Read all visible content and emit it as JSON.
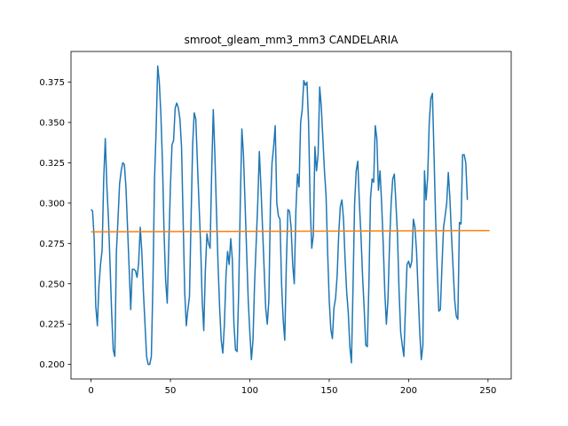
{
  "chart_data": {
    "type": "line",
    "title": "smroot_gleam_mm3_mm3 CANDELARIA",
    "xlabel": "",
    "ylabel": "",
    "xlim": [
      -12.6,
      264.6
    ],
    "ylim": [
      0.191,
      0.394
    ],
    "x_ticks": [
      0,
      50,
      100,
      150,
      200,
      250
    ],
    "x_tick_labels": [
      "0",
      "50",
      "100",
      "150",
      "200",
      "250"
    ],
    "y_ticks": [
      0.2,
      0.225,
      0.25,
      0.275,
      0.3,
      0.325,
      0.35,
      0.375
    ],
    "y_tick_labels": [
      "0.200",
      "0.225",
      "0.250",
      "0.275",
      "0.300",
      "0.325",
      "0.350",
      "0.375"
    ],
    "grid": false,
    "series": [
      {
        "color": "#1f77b4",
        "points": [
          [
            0,
            0.296
          ],
          [
            1,
            0.295
          ],
          [
            2,
            0.278
          ],
          [
            3,
            0.236
          ],
          [
            4,
            0.224
          ],
          [
            5,
            0.249
          ],
          [
            6,
            0.262
          ],
          [
            7,
            0.271
          ],
          [
            8,
            0.315
          ],
          [
            9,
            0.34
          ],
          [
            10,
            0.31
          ],
          [
            11,
            0.29
          ],
          [
            12,
            0.262
          ],
          [
            13,
            0.232
          ],
          [
            14,
            0.209
          ],
          [
            15,
            0.205
          ],
          [
            16,
            0.27
          ],
          [
            17,
            0.29
          ],
          [
            18,
            0.312
          ],
          [
            19,
            0.32
          ],
          [
            20,
            0.325
          ],
          [
            21,
            0.324
          ],
          [
            22,
            0.31
          ],
          [
            23,
            0.285
          ],
          [
            24,
            0.26
          ],
          [
            25,
            0.234
          ],
          [
            26,
            0.259
          ],
          [
            27,
            0.259
          ],
          [
            28,
            0.258
          ],
          [
            29,
            0.254
          ],
          [
            30,
            0.263
          ],
          [
            31,
            0.285
          ],
          [
            32,
            0.27
          ],
          [
            33,
            0.245
          ],
          [
            34,
            0.225
          ],
          [
            35,
            0.205
          ],
          [
            36,
            0.2
          ],
          [
            37,
            0.2
          ],
          [
            38,
            0.205
          ],
          [
            39,
            0.251
          ],
          [
            40,
            0.315
          ],
          [
            41,
            0.345
          ],
          [
            42,
            0.385
          ],
          [
            43,
            0.375
          ],
          [
            44,
            0.355
          ],
          [
            45,
            0.325
          ],
          [
            46,
            0.282
          ],
          [
            47,
            0.252
          ],
          [
            48,
            0.238
          ],
          [
            49,
            0.275
          ],
          [
            50,
            0.31
          ],
          [
            51,
            0.336
          ],
          [
            52,
            0.339
          ],
          [
            53,
            0.359
          ],
          [
            54,
            0.362
          ],
          [
            55,
            0.359
          ],
          [
            56,
            0.352
          ],
          [
            57,
            0.335
          ],
          [
            58,
            0.29
          ],
          [
            59,
            0.245
          ],
          [
            60,
            0.224
          ],
          [
            61,
            0.234
          ],
          [
            62,
            0.242
          ],
          [
            63,
            0.29
          ],
          [
            64,
            0.336
          ],
          [
            65,
            0.356
          ],
          [
            66,
            0.352
          ],
          [
            67,
            0.325
          ],
          [
            68,
            0.3
          ],
          [
            69,
            0.275
          ],
          [
            70,
            0.24
          ],
          [
            71,
            0.221
          ],
          [
            72,
            0.258
          ],
          [
            73,
            0.281
          ],
          [
            74,
            0.275
          ],
          [
            75,
            0.272
          ],
          [
            76,
            0.32
          ],
          [
            77,
            0.358
          ],
          [
            78,
            0.33
          ],
          [
            79,
            0.295
          ],
          [
            80,
            0.262
          ],
          [
            81,
            0.235
          ],
          [
            82,
            0.215
          ],
          [
            83,
            0.207
          ],
          [
            84,
            0.225
          ],
          [
            85,
            0.255
          ],
          [
            86,
            0.27
          ],
          [
            87,
            0.262
          ],
          [
            88,
            0.278
          ],
          [
            89,
            0.265
          ],
          [
            90,
            0.225
          ],
          [
            91,
            0.209
          ],
          [
            92,
            0.208
          ],
          [
            93,
            0.245
          ],
          [
            94,
            0.3
          ],
          [
            95,
            0.346
          ],
          [
            96,
            0.33
          ],
          [
            97,
            0.3
          ],
          [
            98,
            0.27
          ],
          [
            99,
            0.24
          ],
          [
            100,
            0.22
          ],
          [
            101,
            0.203
          ],
          [
            102,
            0.215
          ],
          [
            103,
            0.25
          ],
          [
            104,
            0.275
          ],
          [
            105,
            0.3
          ],
          [
            106,
            0.332
          ],
          [
            107,
            0.31
          ],
          [
            108,
            0.285
          ],
          [
            109,
            0.26
          ],
          [
            110,
            0.235
          ],
          [
            111,
            0.225
          ],
          [
            112,
            0.24
          ],
          [
            113,
            0.3
          ],
          [
            114,
            0.325
          ],
          [
            115,
            0.335
          ],
          [
            116,
            0.348
          ],
          [
            117,
            0.3
          ],
          [
            118,
            0.292
          ],
          [
            119,
            0.29
          ],
          [
            120,
            0.25
          ],
          [
            121,
            0.228
          ],
          [
            122,
            0.215
          ],
          [
            123,
            0.262
          ],
          [
            124,
            0.296
          ],
          [
            125,
            0.295
          ],
          [
            126,
            0.285
          ],
          [
            127,
            0.262
          ],
          [
            128,
            0.25
          ],
          [
            129,
            0.295
          ],
          [
            130,
            0.318
          ],
          [
            131,
            0.31
          ],
          [
            132,
            0.35
          ],
          [
            133,
            0.358
          ],
          [
            134,
            0.376
          ],
          [
            135,
            0.373
          ],
          [
            136,
            0.375
          ],
          [
            137,
            0.35
          ],
          [
            138,
            0.3
          ],
          [
            139,
            0.272
          ],
          [
            140,
            0.28
          ],
          [
            141,
            0.335
          ],
          [
            142,
            0.32
          ],
          [
            143,
            0.33
          ],
          [
            144,
            0.372
          ],
          [
            145,
            0.36
          ],
          [
            146,
            0.34
          ],
          [
            147,
            0.32
          ],
          [
            148,
            0.305
          ],
          [
            149,
            0.27
          ],
          [
            150,
            0.24
          ],
          [
            151,
            0.222
          ],
          [
            152,
            0.216
          ],
          [
            153,
            0.235
          ],
          [
            154,
            0.241
          ],
          [
            155,
            0.255
          ],
          [
            156,
            0.281
          ],
          [
            157,
            0.298
          ],
          [
            158,
            0.302
          ],
          [
            159,
            0.29
          ],
          [
            160,
            0.265
          ],
          [
            161,
            0.245
          ],
          [
            162,
            0.232
          ],
          [
            163,
            0.211
          ],
          [
            164,
            0.201
          ],
          [
            165,
            0.248
          ],
          [
            166,
            0.3
          ],
          [
            167,
            0.32
          ],
          [
            168,
            0.326
          ],
          [
            169,
            0.3
          ],
          [
            170,
            0.28
          ],
          [
            171,
            0.255
          ],
          [
            172,
            0.235
          ],
          [
            173,
            0.212
          ],
          [
            174,
            0.211
          ],
          [
            175,
            0.25
          ],
          [
            176,
            0.303
          ],
          [
            177,
            0.315
          ],
          [
            178,
            0.313
          ],
          [
            179,
            0.348
          ],
          [
            180,
            0.34
          ],
          [
            181,
            0.308
          ],
          [
            182,
            0.32
          ],
          [
            183,
            0.3
          ],
          [
            184,
            0.275
          ],
          [
            185,
            0.245
          ],
          [
            186,
            0.225
          ],
          [
            187,
            0.24
          ],
          [
            188,
            0.275
          ],
          [
            189,
            0.3
          ],
          [
            190,
            0.315
          ],
          [
            191,
            0.318
          ],
          [
            192,
            0.3
          ],
          [
            193,
            0.28
          ],
          [
            194,
            0.245
          ],
          [
            195,
            0.22
          ],
          [
            196,
            0.212
          ],
          [
            197,
            0.205
          ],
          [
            198,
            0.235
          ],
          [
            199,
            0.262
          ],
          [
            200,
            0.264
          ],
          [
            201,
            0.26
          ],
          [
            202,
            0.264
          ],
          [
            203,
            0.29
          ],
          [
            204,
            0.285
          ],
          [
            205,
            0.27
          ],
          [
            206,
            0.245
          ],
          [
            207,
            0.22
          ],
          [
            208,
            0.203
          ],
          [
            209,
            0.212
          ],
          [
            210,
            0.32
          ],
          [
            211,
            0.302
          ],
          [
            212,
            0.316
          ],
          [
            213,
            0.35
          ],
          [
            214,
            0.365
          ],
          [
            215,
            0.368
          ],
          [
            216,
            0.33
          ],
          [
            217,
            0.29
          ],
          [
            218,
            0.26
          ],
          [
            219,
            0.233
          ],
          [
            220,
            0.234
          ],
          [
            221,
            0.261
          ],
          [
            222,
            0.285
          ],
          [
            223,
            0.292
          ],
          [
            224,
            0.3
          ],
          [
            225,
            0.319
          ],
          [
            226,
            0.303
          ],
          [
            227,
            0.28
          ],
          [
            228,
            0.26
          ],
          [
            229,
            0.24
          ],
          [
            230,
            0.23
          ],
          [
            231,
            0.228
          ],
          [
            232,
            0.288
          ],
          [
            233,
            0.287
          ],
          [
            234,
            0.33
          ],
          [
            235,
            0.33
          ],
          [
            236,
            0.325
          ],
          [
            237,
            0.302
          ]
        ]
      },
      {
        "color": "#ff7f0e",
        "points": [
          [
            0,
            0.2822
          ],
          [
            251,
            0.283
          ]
        ]
      }
    ]
  }
}
